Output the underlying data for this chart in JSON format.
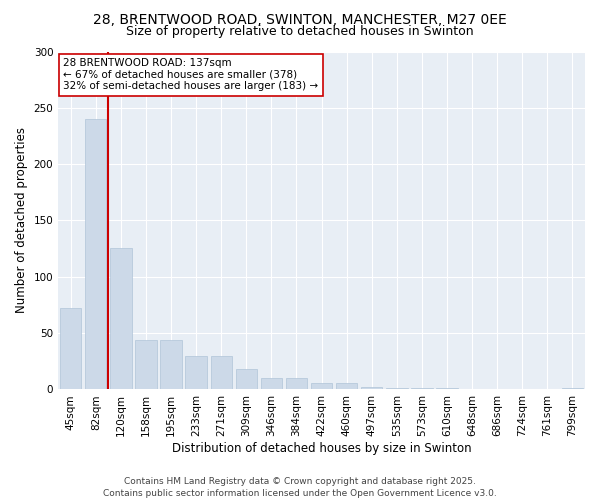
{
  "title_line1": "28, BRENTWOOD ROAD, SWINTON, MANCHESTER, M27 0EE",
  "title_line2": "Size of property relative to detached houses in Swinton",
  "xlabel": "Distribution of detached houses by size in Swinton",
  "ylabel": "Number of detached properties",
  "categories": [
    "45sqm",
    "82sqm",
    "120sqm",
    "158sqm",
    "195sqm",
    "233sqm",
    "271sqm",
    "309sqm",
    "346sqm",
    "384sqm",
    "422sqm",
    "460sqm",
    "497sqm",
    "535sqm",
    "573sqm",
    "610sqm",
    "648sqm",
    "686sqm",
    "724sqm",
    "761sqm",
    "799sqm"
  ],
  "values": [
    72,
    240,
    126,
    44,
    44,
    30,
    30,
    18,
    10,
    10,
    6,
    6,
    2,
    1,
    1,
    1,
    0,
    0,
    0,
    0,
    1
  ],
  "bar_color": "#ccd9e8",
  "bar_edge_color": "#b0c4d8",
  "vline_x_index": 2,
  "vline_color": "#cc0000",
  "vline_label": "28 BRENTWOOD ROAD: 137sqm",
  "annotation_line2": "← 67% of detached houses are smaller (378)",
  "annotation_line3": "32% of semi-detached houses are larger (183) →",
  "annotation_box_facecolor": "#ffffff",
  "annotation_box_edgecolor": "#cc0000",
  "ylim": [
    0,
    300
  ],
  "yticks": [
    0,
    50,
    100,
    150,
    200,
    250,
    300
  ],
  "figure_facecolor": "#ffffff",
  "axes_facecolor": "#e8eef5",
  "grid_color": "#ffffff",
  "footnote_line1": "Contains HM Land Registry data © Crown copyright and database right 2025.",
  "footnote_line2": "Contains public sector information licensed under the Open Government Licence v3.0.",
  "title_fontsize": 10,
  "subtitle_fontsize": 9,
  "axis_label_fontsize": 8.5,
  "tick_fontsize": 7.5,
  "annotation_fontsize": 7.5,
  "footnote_fontsize": 6.5
}
